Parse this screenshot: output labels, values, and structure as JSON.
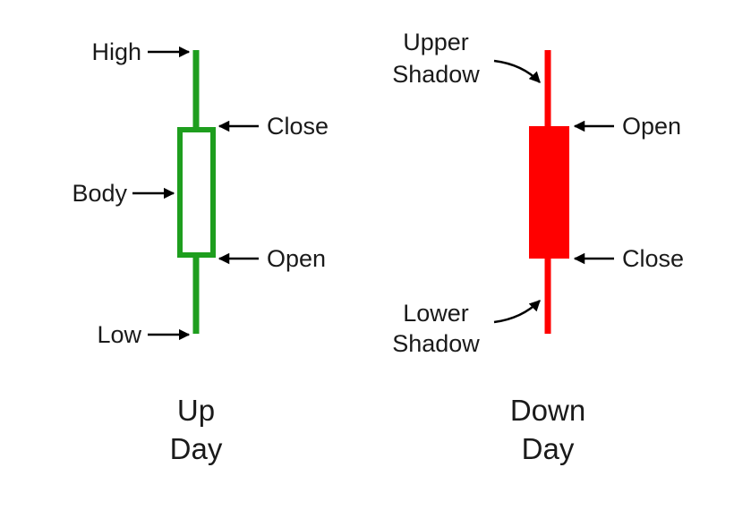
{
  "colors": {
    "up": "#1e9e1e",
    "down": "#ff0000",
    "text": "#1a1a1a",
    "arrow": "#000000",
    "background": "#ffffff"
  },
  "up_candle": {
    "labels": {
      "high": "High",
      "close": "Close",
      "body": "Body",
      "open": "Open",
      "low": "Low"
    },
    "caption_line1": "Up",
    "caption_line2": "Day"
  },
  "down_candle": {
    "labels": {
      "upper_shadow_line1": "Upper",
      "upper_shadow_line2": "Shadow",
      "open": "Open",
      "close": "Close",
      "lower_shadow_line1": "Lower",
      "lower_shadow_line2": "Shadow"
    },
    "caption_line1": "Down",
    "caption_line2": "Day"
  }
}
